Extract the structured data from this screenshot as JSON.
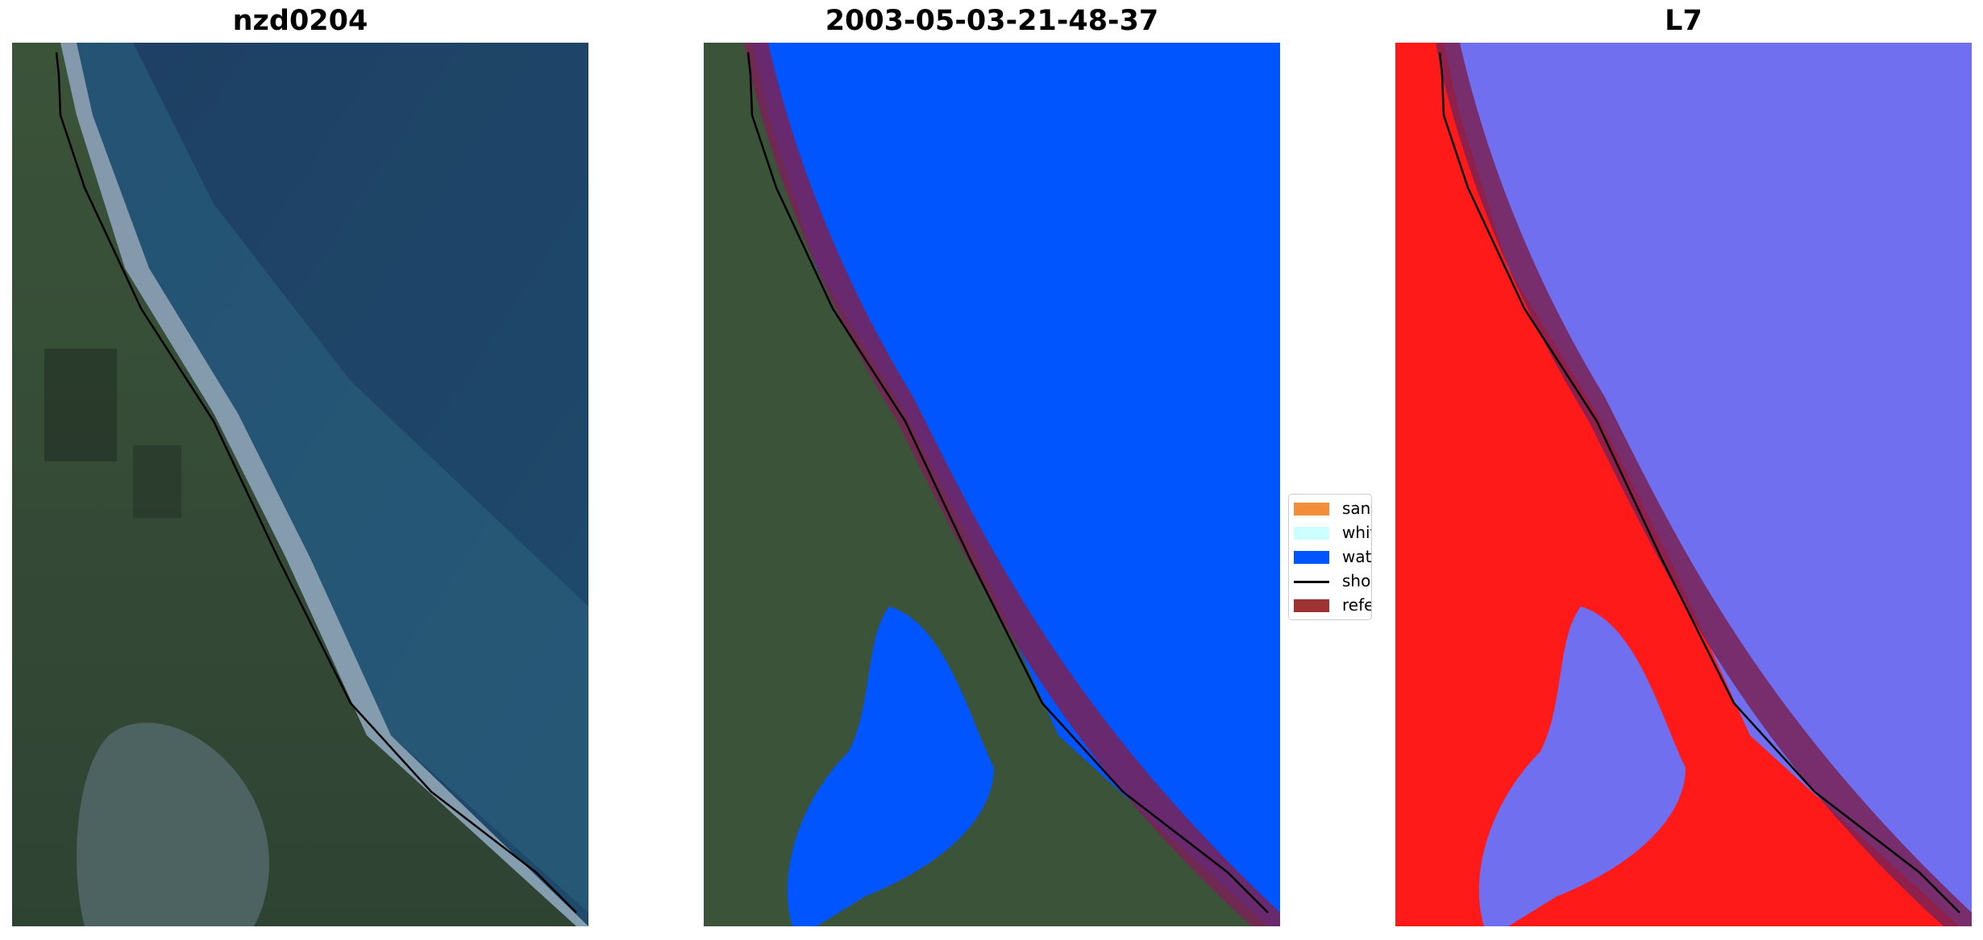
{
  "panels": [
    {
      "title": "nzd0204"
    },
    {
      "title": "2003-05-03-21-48-37"
    },
    {
      "title": "L7"
    }
  ],
  "legend": {
    "items": [
      {
        "label": "sand",
        "color": "#F28E3A",
        "kind": "patch"
      },
      {
        "label": "whitewater",
        "color": "#CCFFFF",
        "kind": "patch"
      },
      {
        "label": "water",
        "color": "#0055FF",
        "kind": "patch"
      },
      {
        "label": "shoreline",
        "color": "#000000",
        "kind": "line"
      },
      {
        "label": "reference",
        "color": "#9E3333",
        "kind": "patch"
      }
    ]
  },
  "colors": {
    "land_dark": "#2E3D30",
    "land_green": "#3F5A3A",
    "ocean": "#1E4466",
    "shallow_water": "#2F6A86",
    "classified_water": "#0055FF",
    "reference_buffer": "#7A2255",
    "shoreline": "#000000",
    "index_land": "#FF1A1A",
    "index_water": "#6F6FEF"
  }
}
